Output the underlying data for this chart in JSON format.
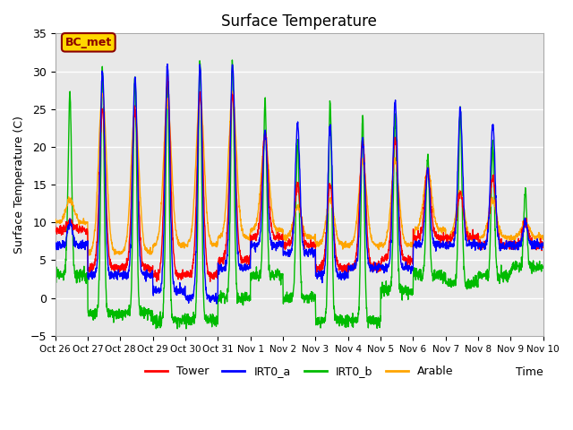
{
  "title": "Surface Temperature",
  "ylabel": "Surface Temperature (C)",
  "xlabel": "Time",
  "ylim": [
    -5,
    35
  ],
  "yticks": [
    -5,
    0,
    5,
    10,
    15,
    20,
    25,
    30,
    35
  ],
  "x_tick_labels": [
    "Oct 26",
    "Oct 27",
    "Oct 28",
    "Oct 29",
    "Oct 30",
    "Oct 31",
    "Nov 1",
    "Nov 2",
    "Nov 3",
    "Nov 4",
    "Nov 5",
    "Nov 6",
    "Nov 7",
    "Nov 8",
    "Nov 9",
    "Nov 10"
  ],
  "annotation_text": "BC_met",
  "annotation_color": "#8B0000",
  "annotation_bg": "#FFD700",
  "bg_color": "#E8E8E8",
  "colors": {
    "Tower": "#FF0000",
    "IRT0_a": "#0000FF",
    "IRT0_b": "#00BB00",
    "Arable": "#FFA500"
  },
  "line_width": 1.0
}
